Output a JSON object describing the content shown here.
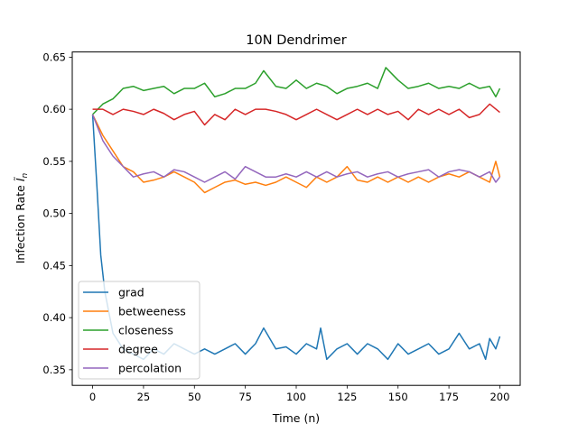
{
  "chart_data": {
    "type": "line",
    "title": "10N Dendrimer",
    "xlabel": "Time (n)",
    "ylabel": "Infection Rate",
    "ylabel_symbol": "Ĩ",
    "ylabel_subscript": "n",
    "xlim": [
      -10,
      210
    ],
    "ylim": [
      0.335,
      0.655
    ],
    "xticks": [
      0,
      25,
      50,
      75,
      100,
      125,
      150,
      175,
      200
    ],
    "yticks": [
      0.35,
      0.4,
      0.45,
      0.5,
      0.55,
      0.6,
      0.65
    ],
    "ytick_labels": [
      "0.35",
      "0.40",
      "0.45",
      "0.50",
      "0.55",
      "0.60",
      "0.65"
    ],
    "legend_position": "lower-left",
    "grid": false,
    "series": [
      {
        "name": "grad",
        "color": "#1f77b4",
        "x": [
          0,
          2,
          4,
          6,
          8,
          10,
          15,
          20,
          25,
          30,
          35,
          40,
          45,
          50,
          55,
          60,
          65,
          70,
          75,
          80,
          84,
          90,
          95,
          100,
          105,
          110,
          112,
          115,
          120,
          125,
          130,
          135,
          140,
          145,
          150,
          155,
          160,
          165,
          170,
          175,
          180,
          185,
          190,
          193,
          195,
          198,
          200
        ],
        "y": [
          0.595,
          0.53,
          0.46,
          0.425,
          0.405,
          0.385,
          0.37,
          0.365,
          0.36,
          0.37,
          0.365,
          0.375,
          0.37,
          0.365,
          0.37,
          0.365,
          0.37,
          0.375,
          0.365,
          0.375,
          0.39,
          0.37,
          0.372,
          0.365,
          0.375,
          0.37,
          0.39,
          0.36,
          0.37,
          0.375,
          0.365,
          0.375,
          0.37,
          0.36,
          0.375,
          0.365,
          0.37,
          0.375,
          0.365,
          0.37,
          0.385,
          0.37,
          0.375,
          0.36,
          0.38,
          0.37,
          0.382
        ]
      },
      {
        "name": "betweeness",
        "color": "#ff7f0e",
        "x": [
          0,
          5,
          10,
          15,
          20,
          25,
          30,
          35,
          40,
          45,
          50,
          55,
          60,
          65,
          70,
          75,
          80,
          85,
          90,
          95,
          100,
          105,
          110,
          115,
          120,
          125,
          130,
          135,
          140,
          145,
          150,
          155,
          160,
          165,
          170,
          175,
          180,
          185,
          190,
          195,
          198,
          200
        ],
        "y": [
          0.595,
          0.575,
          0.56,
          0.545,
          0.54,
          0.53,
          0.532,
          0.535,
          0.54,
          0.535,
          0.53,
          0.52,
          0.525,
          0.53,
          0.532,
          0.528,
          0.53,
          0.527,
          0.53,
          0.535,
          0.53,
          0.525,
          0.535,
          0.53,
          0.535,
          0.545,
          0.532,
          0.53,
          0.535,
          0.53,
          0.535,
          0.53,
          0.535,
          0.53,
          0.535,
          0.538,
          0.535,
          0.54,
          0.535,
          0.53,
          0.55,
          0.535
        ]
      },
      {
        "name": "closeness",
        "color": "#2ca02c",
        "x": [
          0,
          5,
          10,
          15,
          20,
          25,
          30,
          35,
          40,
          45,
          50,
          55,
          60,
          65,
          70,
          75,
          80,
          84,
          90,
          95,
          100,
          105,
          110,
          115,
          120,
          125,
          130,
          135,
          140,
          144,
          150,
          155,
          160,
          165,
          170,
          175,
          180,
          185,
          190,
          195,
          198,
          200
        ],
        "y": [
          0.595,
          0.605,
          0.61,
          0.62,
          0.622,
          0.618,
          0.62,
          0.622,
          0.615,
          0.62,
          0.62,
          0.625,
          0.612,
          0.615,
          0.62,
          0.62,
          0.625,
          0.637,
          0.622,
          0.62,
          0.628,
          0.62,
          0.625,
          0.622,
          0.615,
          0.62,
          0.622,
          0.625,
          0.62,
          0.64,
          0.628,
          0.62,
          0.622,
          0.625,
          0.62,
          0.622,
          0.62,
          0.625,
          0.62,
          0.622,
          0.612,
          0.62
        ]
      },
      {
        "name": "degree",
        "color": "#d62728",
        "x": [
          0,
          5,
          10,
          15,
          20,
          25,
          30,
          35,
          40,
          45,
          50,
          55,
          60,
          65,
          70,
          75,
          80,
          85,
          90,
          95,
          100,
          105,
          110,
          115,
          120,
          125,
          130,
          135,
          140,
          145,
          150,
          155,
          160,
          165,
          170,
          175,
          180,
          185,
          190,
          195,
          200
        ],
        "y": [
          0.6,
          0.6,
          0.595,
          0.6,
          0.598,
          0.595,
          0.6,
          0.596,
          0.59,
          0.595,
          0.598,
          0.585,
          0.595,
          0.59,
          0.6,
          0.595,
          0.6,
          0.6,
          0.598,
          0.595,
          0.59,
          0.595,
          0.6,
          0.595,
          0.59,
          0.595,
          0.6,
          0.595,
          0.6,
          0.595,
          0.598,
          0.59,
          0.6,
          0.595,
          0.6,
          0.595,
          0.6,
          0.592,
          0.595,
          0.605,
          0.597
        ]
      },
      {
        "name": "percolation",
        "color": "#9467bd",
        "x": [
          0,
          5,
          10,
          15,
          20,
          25,
          30,
          35,
          40,
          45,
          50,
          55,
          60,
          65,
          70,
          75,
          80,
          85,
          90,
          95,
          100,
          105,
          110,
          115,
          120,
          125,
          130,
          135,
          140,
          145,
          150,
          155,
          160,
          165,
          170,
          175,
          180,
          185,
          190,
          195,
          198,
          200
        ],
        "y": [
          0.595,
          0.57,
          0.555,
          0.545,
          0.535,
          0.538,
          0.54,
          0.535,
          0.542,
          0.54,
          0.535,
          0.53,
          0.535,
          0.54,
          0.533,
          0.545,
          0.54,
          0.535,
          0.535,
          0.538,
          0.535,
          0.54,
          0.535,
          0.54,
          0.535,
          0.538,
          0.54,
          0.535,
          0.538,
          0.54,
          0.535,
          0.538,
          0.54,
          0.542,
          0.535,
          0.54,
          0.542,
          0.54,
          0.535,
          0.54,
          0.53,
          0.535
        ]
      }
    ]
  }
}
